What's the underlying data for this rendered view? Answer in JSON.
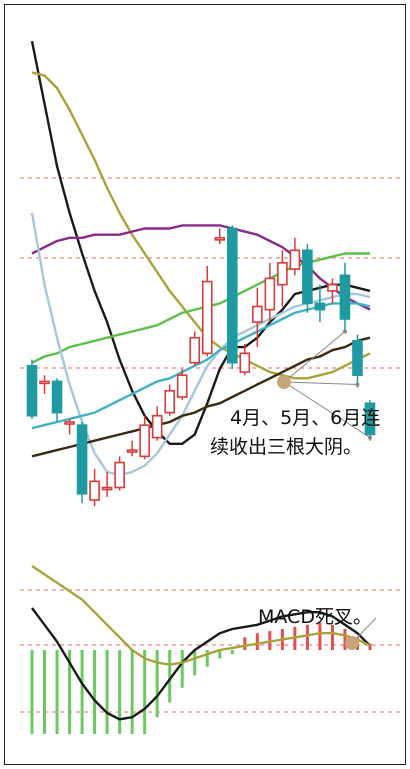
{
  "annotations": {
    "bearish_line1": "4月、5月、6月连",
    "bearish_line2": "续收出三根大阴。",
    "macd_cross": "MACD死叉。"
  },
  "colors": {
    "up_candle": "#d93a3a",
    "down_candle": "#1e9aa0",
    "ma_black": "#1a1a1a",
    "ma_olive": "#a8a33a",
    "ma_purple": "#8a2a8a",
    "ma_green": "#5cc04a",
    "ma_lightblue": "#a6c8d8",
    "ma_teal": "#3fb3c3",
    "ma_brown": "#3a2a10",
    "grid_dash": "#e58a8a",
    "macd_pos": "#e05050",
    "macd_neg": "#6cc860",
    "marker": "#c9a47a"
  },
  "chart_data": [
    {
      "type": "candlestick",
      "panel": "price",
      "candles": [
        {
          "o": 46,
          "c": 30,
          "h": 48,
          "l": 29
        },
        {
          "o": 41,
          "c": 41,
          "h": 43,
          "l": 37
        },
        {
          "o": 41,
          "c": 31,
          "h": 42,
          "l": 28
        },
        {
          "o": 28,
          "c": 28,
          "h": 29,
          "l": 24
        },
        {
          "o": 27,
          "c": 5,
          "h": 28,
          "l": 2
        },
        {
          "o": 3,
          "c": 9,
          "h": 13,
          "l": 1
        },
        {
          "o": 7,
          "c": 7,
          "h": 12,
          "l": 4
        },
        {
          "o": 7,
          "c": 15,
          "h": 17,
          "l": 6
        },
        {
          "o": 19,
          "c": 19,
          "h": 22,
          "l": 17
        },
        {
          "o": 17,
          "c": 27,
          "h": 30,
          "l": 16
        },
        {
          "o": 23,
          "c": 30,
          "h": 33,
          "l": 22
        },
        {
          "o": 31,
          "c": 38,
          "h": 40,
          "l": 30
        },
        {
          "o": 36,
          "c": 43,
          "h": 45,
          "l": 35
        },
        {
          "o": 47,
          "c": 55,
          "h": 57,
          "l": 46
        },
        {
          "o": 50,
          "c": 73,
          "h": 78,
          "l": 49
        },
        {
          "o": 87,
          "c": 87,
          "h": 90,
          "l": 85
        },
        {
          "o": 90,
          "c": 47,
          "h": 91,
          "l": 45
        },
        {
          "o": 44,
          "c": 50,
          "h": 53,
          "l": 43
        },
        {
          "o": 60,
          "c": 65,
          "h": 71,
          "l": 52
        },
        {
          "o": 64,
          "c": 74,
          "h": 79,
          "l": 60
        },
        {
          "o": 72,
          "c": 79,
          "h": 83,
          "l": 65
        },
        {
          "o": 77,
          "c": 83,
          "h": 87,
          "l": 75
        },
        {
          "o": 83,
          "c": 66,
          "h": 85,
          "l": 63
        },
        {
          "o": 66,
          "c": 64,
          "h": 72,
          "l": 60
        },
        {
          "o": 70,
          "c": 72,
          "h": 74,
          "l": 66
        },
        {
          "o": 75,
          "c": 61,
          "h": 79,
          "l": 57
        },
        {
          "o": 54,
          "c": 43,
          "h": 56,
          "l": 39
        },
        {
          "o": 34,
          "c": 24,
          "h": 35,
          "l": 22
        }
      ],
      "moving_averages": [
        {
          "color_key": "ma_black",
          "values": [
            150,
            130,
            110,
            95,
            82,
            70,
            60,
            48,
            38,
            30,
            25,
            21,
            21,
            24,
            34,
            45,
            52,
            52,
            55,
            60,
            64,
            69,
            70,
            71,
            72,
            72,
            71,
            70
          ]
        },
        {
          "color_key": "ma_olive",
          "values": [
            140,
            139,
            135,
            128,
            120,
            112,
            103,
            95,
            88,
            82,
            76,
            70,
            65,
            60,
            55,
            52,
            50,
            48,
            46,
            44,
            43,
            42,
            42,
            43,
            44,
            46,
            48,
            50
          ]
        },
        {
          "color_key": "ma_purple",
          "values": [
            82,
            84,
            86,
            87,
            87,
            88,
            88,
            88,
            89,
            90,
            90,
            90,
            91,
            91,
            91,
            91,
            90,
            89,
            88,
            86,
            84,
            81,
            78,
            74,
            71,
            68,
            66,
            64
          ]
        },
        {
          "color_key": "ma_green",
          "values": [
            47,
            49,
            50,
            52,
            53,
            54,
            55,
            56,
            57,
            58,
            59,
            61,
            63,
            64,
            65,
            66,
            68,
            70,
            72,
            74,
            76,
            78,
            79,
            80,
            81,
            82,
            82,
            82
          ]
        },
        {
          "color_key": "ma_lightblue",
          "values": [
            95,
            72,
            55,
            40,
            28,
            18,
            12,
            11,
            12,
            14,
            18,
            24,
            30,
            38,
            46,
            51,
            55,
            57,
            59,
            61,
            63,
            65,
            66,
            67,
            68,
            69,
            69,
            68
          ]
        },
        {
          "color_key": "ma_teal",
          "values": [
            26,
            27,
            28,
            29,
            30,
            31,
            33,
            35,
            37,
            39,
            41,
            42,
            44,
            46,
            48,
            51,
            53,
            55,
            57,
            59,
            61,
            63,
            64,
            65,
            66,
            66,
            66,
            65
          ]
        },
        {
          "color_key": "ma_brown",
          "values": [
            17,
            18,
            19,
            20,
            21,
            22,
            23,
            24,
            25,
            26,
            27,
            28,
            30,
            31,
            33,
            34,
            36,
            38,
            40,
            42,
            44,
            46,
            48,
            49,
            51,
            52,
            54,
            55
          ]
        }
      ],
      "ylim": [
        -5,
        160
      ]
    },
    {
      "type": "bar",
      "panel": "MACD",
      "series": [
        {
          "values": [
            -40,
            -40,
            -40,
            -40,
            -40,
            -40,
            -40,
            -40,
            -40,
            -40,
            -32,
            -25,
            -18,
            -12,
            -8,
            -4,
            -2,
            6,
            8,
            9,
            10,
            11,
            12,
            13,
            12,
            10,
            6,
            3
          ]
        }
      ],
      "lines": [
        {
          "color_key": "ma_black",
          "values": [
            20,
            12,
            4,
            -6,
            -16,
            -24,
            -30,
            -33,
            -32,
            -28,
            -22,
            -14,
            -6,
            0,
            4,
            8,
            10,
            11,
            12,
            14,
            16,
            17,
            18,
            18,
            16,
            12,
            8,
            2
          ]
        },
        {
          "color_key": "ma_olive",
          "values": [
            40,
            36,
            32,
            28,
            24,
            18,
            12,
            6,
            0,
            -4,
            -6,
            -7,
            -6,
            -4,
            -2,
            0,
            1,
            2,
            3,
            4,
            5,
            6,
            7,
            8,
            8,
            7,
            5,
            2
          ]
        }
      ],
      "ylim": [
        -50,
        50
      ]
    }
  ]
}
